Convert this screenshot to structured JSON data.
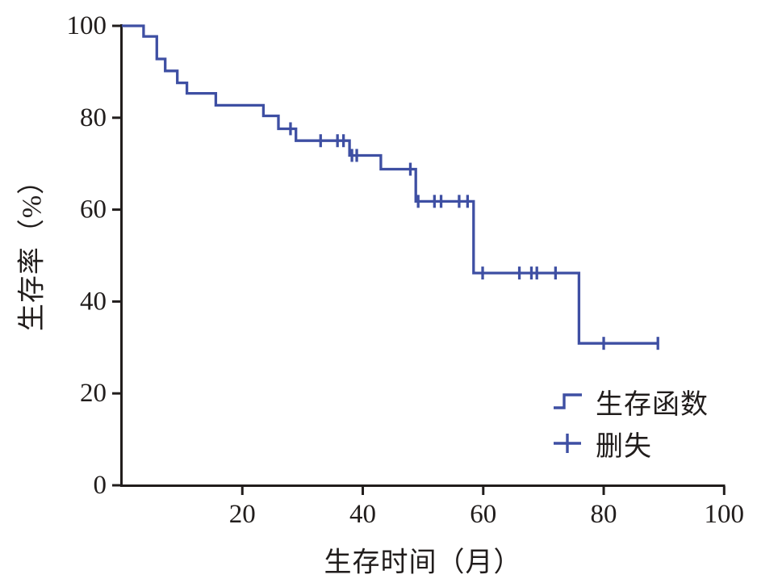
{
  "chart_data": {
    "type": "line",
    "subtype": "kaplan-meier-survival-curve",
    "title": "",
    "xlabel": "生存时间（月）",
    "ylabel": "生存率（%）",
    "xlim": [
      0,
      100
    ],
    "ylim": [
      0,
      100
    ],
    "x_ticks": [
      20,
      40,
      60,
      80,
      100
    ],
    "y_ticks": [
      0,
      20,
      40,
      60,
      80,
      100
    ],
    "grid": false,
    "background": "#ffffff",
    "axis_color": "#211d1c",
    "line_color": "#3e4fa3",
    "legend": {
      "position": "inside-bottom-right",
      "items": [
        {
          "label": "生存函数",
          "marker": "step-line"
        },
        {
          "label": "删失",
          "marker": "plus"
        }
      ]
    },
    "series": [
      {
        "name": "生存函数",
        "color": "#3e4fa3",
        "step_points": [
          [
            0,
            100
          ],
          [
            3.6,
            100
          ],
          [
            3.6,
            97.7
          ],
          [
            5.8,
            97.7
          ],
          [
            5.8,
            92.8
          ],
          [
            7.2,
            92.8
          ],
          [
            7.2,
            90.2
          ],
          [
            9.2,
            90.2
          ],
          [
            9.2,
            87.6
          ],
          [
            10.8,
            87.6
          ],
          [
            10.8,
            85.3
          ],
          [
            15.6,
            85.3
          ],
          [
            15.6,
            82.7
          ],
          [
            23.5,
            82.7
          ],
          [
            23.5,
            80.4
          ],
          [
            26,
            80.4
          ],
          [
            26,
            77.6
          ],
          [
            28.9,
            77.6
          ],
          [
            28.9,
            75
          ],
          [
            37.8,
            75
          ],
          [
            37.8,
            71.8
          ],
          [
            43,
            71.8
          ],
          [
            43,
            68.8
          ],
          [
            48.8,
            68.8
          ],
          [
            48.8,
            61.8
          ],
          [
            58.4,
            61.8
          ],
          [
            58.4,
            46.2
          ],
          [
            75.9,
            46.2
          ],
          [
            75.9,
            30.9
          ],
          [
            89,
            30.9
          ]
        ]
      }
    ],
    "censored": {
      "name": "删失",
      "color": "#3e4fa3",
      "points": [
        [
          28,
          77.6
        ],
        [
          33,
          75
        ],
        [
          35.8,
          75
        ],
        [
          36.8,
          75
        ],
        [
          38.2,
          71.8
        ],
        [
          39,
          71.8
        ],
        [
          47.9,
          68.8
        ],
        [
          49.2,
          61.8
        ],
        [
          51.9,
          61.8
        ],
        [
          53,
          61.8
        ],
        [
          56,
          61.8
        ],
        [
          57.4,
          61.8
        ],
        [
          59.9,
          46.2
        ],
        [
          66,
          46.2
        ],
        [
          68,
          46.2
        ],
        [
          68.9,
          46.2
        ],
        [
          72,
          46.2
        ],
        [
          80,
          30.9
        ],
        [
          89,
          30.9
        ]
      ]
    }
  }
}
